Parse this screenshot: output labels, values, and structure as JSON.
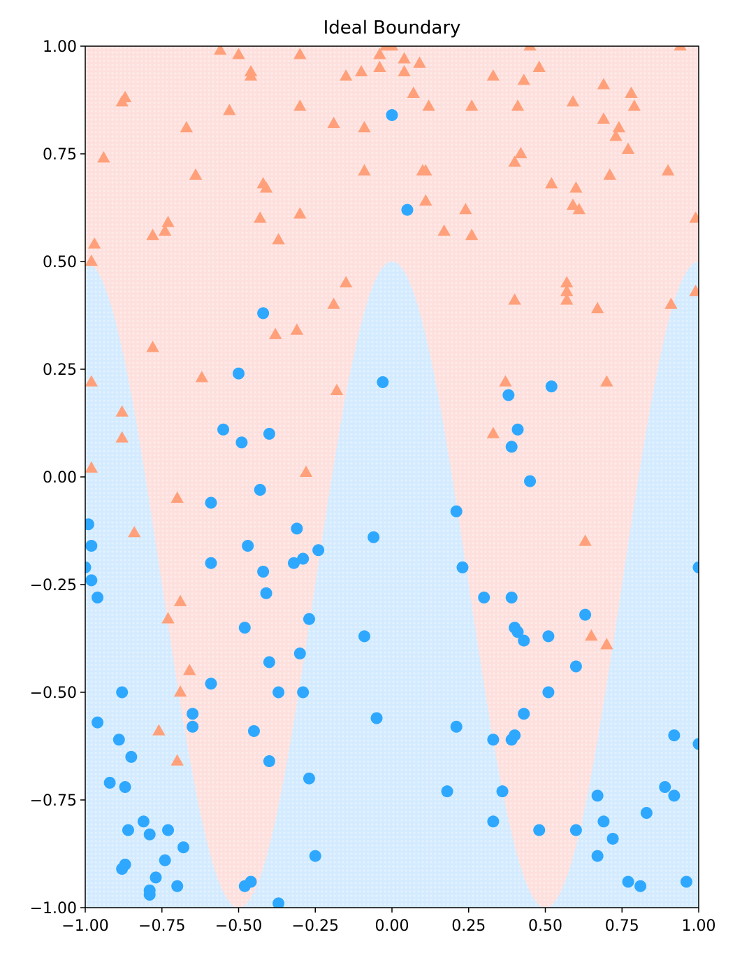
{
  "chart_data": {
    "type": "scatter",
    "title": "Ideal Boundary",
    "xlabel": "",
    "ylabel": "",
    "xlim": [
      -1.0,
      1.0
    ],
    "ylim": [
      -1.0,
      1.0
    ],
    "xticks": [
      "−1.00",
      "−0.75",
      "−0.50",
      "−0.25",
      "0.00",
      "0.25",
      "0.50",
      "0.75",
      "1.00"
    ],
    "yticks": [
      "−1.00",
      "−0.75",
      "−0.50",
      "−0.25",
      "0.00",
      "0.25",
      "0.50",
      "0.75",
      "1.00"
    ],
    "grid": false,
    "legend": "none",
    "background_regions": {
      "boundary": "y = 0.75*cos(2*pi*x) - 0.25",
      "above_color": "#fde0dd",
      "below_color": "#d4ebff"
    },
    "series": [
      {
        "marker": "triangle",
        "color": "#ffa07a",
        "points": [
          [
            -0.56,
            0.99
          ],
          [
            -0.5,
            0.98
          ],
          [
            -0.46,
            0.94
          ],
          [
            -0.46,
            0.93
          ],
          [
            -0.3,
            0.98
          ],
          [
            -0.15,
            0.93
          ],
          [
            -0.1,
            0.94
          ],
          [
            -0.04,
            0.98
          ],
          [
            -0.04,
            0.95
          ],
          [
            -0.02,
            1.0
          ],
          [
            0.0,
            1.0
          ],
          [
            0.04,
            0.97
          ],
          [
            0.04,
            0.94
          ],
          [
            0.09,
            0.96
          ],
          [
            0.07,
            0.89
          ],
          [
            0.12,
            0.86
          ],
          [
            0.26,
            0.86
          ],
          [
            0.33,
            0.93
          ],
          [
            0.43,
            0.92
          ],
          [
            0.45,
            1.0
          ],
          [
            0.48,
            0.95
          ],
          [
            0.41,
            0.86
          ],
          [
            0.59,
            0.87
          ],
          [
            0.69,
            0.91
          ],
          [
            0.78,
            0.89
          ],
          [
            0.79,
            0.86
          ],
          [
            0.94,
            1.0
          ],
          [
            -0.88,
            0.87
          ],
          [
            -0.87,
            0.88
          ],
          [
            -0.53,
            0.85
          ],
          [
            -0.3,
            0.86
          ],
          [
            -0.19,
            0.82
          ],
          [
            -0.09,
            0.81
          ],
          [
            0.69,
            0.83
          ],
          [
            0.74,
            0.81
          ],
          [
            0.73,
            0.79
          ],
          [
            -0.67,
            0.81
          ],
          [
            -0.94,
            0.74
          ],
          [
            -0.64,
            0.7
          ],
          [
            -0.09,
            0.71
          ],
          [
            0.1,
            0.71
          ],
          [
            0.11,
            0.71
          ],
          [
            0.42,
            0.75
          ],
          [
            0.4,
            0.73
          ],
          [
            0.77,
            0.76
          ],
          [
            0.9,
            0.71
          ],
          [
            0.71,
            0.7
          ],
          [
            -0.42,
            0.68
          ],
          [
            -0.41,
            0.67
          ],
          [
            0.52,
            0.68
          ],
          [
            0.6,
            0.67
          ],
          [
            -0.43,
            0.6
          ],
          [
            -0.3,
            0.61
          ],
          [
            0.11,
            0.64
          ],
          [
            0.24,
            0.62
          ],
          [
            0.59,
            0.63
          ],
          [
            0.61,
            0.62
          ],
          [
            0.99,
            0.6
          ],
          [
            -0.73,
            0.59
          ],
          [
            -0.74,
            0.57
          ],
          [
            -0.78,
            0.56
          ],
          [
            -0.97,
            0.54
          ],
          [
            -0.98,
            0.5
          ],
          [
            -0.37,
            0.55
          ],
          [
            0.17,
            0.57
          ],
          [
            0.26,
            0.56
          ],
          [
            -0.15,
            0.45
          ],
          [
            -0.19,
            0.4
          ],
          [
            0.57,
            0.45
          ],
          [
            0.57,
            0.43
          ],
          [
            0.57,
            0.41
          ],
          [
            0.4,
            0.41
          ],
          [
            0.67,
            0.39
          ],
          [
            0.91,
            0.4
          ],
          [
            0.99,
            0.43
          ],
          [
            -0.31,
            0.34
          ],
          [
            -0.38,
            0.33
          ],
          [
            -0.78,
            0.3
          ],
          [
            -0.62,
            0.23
          ],
          [
            -0.98,
            0.22
          ],
          [
            -0.18,
            0.2
          ],
          [
            0.37,
            0.22
          ],
          [
            0.7,
            0.22
          ],
          [
            -0.88,
            0.15
          ],
          [
            -0.88,
            0.09
          ],
          [
            0.33,
            0.1
          ],
          [
            -0.98,
            0.02
          ],
          [
            -0.28,
            0.01
          ],
          [
            -0.7,
            -0.05
          ],
          [
            -0.84,
            -0.13
          ],
          [
            0.63,
            -0.15
          ],
          [
            -0.69,
            -0.29
          ],
          [
            -0.73,
            -0.33
          ],
          [
            0.65,
            -0.37
          ],
          [
            0.7,
            -0.39
          ],
          [
            -0.66,
            -0.45
          ],
          [
            -0.69,
            -0.5
          ],
          [
            -0.76,
            -0.59
          ],
          [
            -0.7,
            -0.66
          ]
        ]
      },
      {
        "marker": "circle",
        "color": "#2ea8ff",
        "points": [
          [
            0.0,
            0.84
          ],
          [
            0.05,
            0.62
          ],
          [
            -0.42,
            0.38
          ],
          [
            -0.5,
            0.24
          ],
          [
            -0.03,
            0.22
          ],
          [
            0.52,
            0.21
          ],
          [
            0.38,
            0.19
          ],
          [
            -0.55,
            0.11
          ],
          [
            -0.4,
            0.1
          ],
          [
            -0.49,
            0.08
          ],
          [
            0.41,
            0.11
          ],
          [
            0.39,
            0.07
          ],
          [
            -0.43,
            -0.03
          ],
          [
            0.45,
            -0.01
          ],
          [
            -0.59,
            -0.06
          ],
          [
            0.21,
            -0.08
          ],
          [
            -0.99,
            -0.11
          ],
          [
            -0.31,
            -0.12
          ],
          [
            -0.06,
            -0.14
          ],
          [
            -0.98,
            -0.16
          ],
          [
            -0.47,
            -0.16
          ],
          [
            -0.24,
            -0.17
          ],
          [
            -0.59,
            -0.2
          ],
          [
            -0.32,
            -0.2
          ],
          [
            -0.29,
            -0.19
          ],
          [
            -1.0,
            -0.21
          ],
          [
            1.0,
            -0.21
          ],
          [
            0.23,
            -0.21
          ],
          [
            -0.42,
            -0.22
          ],
          [
            -0.98,
            -0.24
          ],
          [
            -0.96,
            -0.28
          ],
          [
            -0.41,
            -0.27
          ],
          [
            0.3,
            -0.28
          ],
          [
            0.39,
            -0.28
          ],
          [
            -0.27,
            -0.33
          ],
          [
            0.63,
            -0.32
          ],
          [
            -0.48,
            -0.35
          ],
          [
            0.4,
            -0.35
          ],
          [
            0.41,
            -0.36
          ],
          [
            -0.09,
            -0.37
          ],
          [
            0.51,
            -0.37
          ],
          [
            0.43,
            -0.38
          ],
          [
            -0.3,
            -0.41
          ],
          [
            -0.4,
            -0.43
          ],
          [
            0.6,
            -0.44
          ],
          [
            -0.59,
            -0.48
          ],
          [
            -0.88,
            -0.5
          ],
          [
            -0.37,
            -0.5
          ],
          [
            -0.29,
            -0.5
          ],
          [
            0.51,
            -0.5
          ],
          [
            -0.65,
            -0.55
          ],
          [
            0.43,
            -0.55
          ],
          [
            -0.05,
            -0.56
          ],
          [
            -0.96,
            -0.57
          ],
          [
            -0.65,
            -0.58
          ],
          [
            0.21,
            -0.58
          ],
          [
            -0.45,
            -0.59
          ],
          [
            0.4,
            -0.6
          ],
          [
            -0.89,
            -0.61
          ],
          [
            0.33,
            -0.61
          ],
          [
            0.39,
            -0.61
          ],
          [
            0.92,
            -0.6
          ],
          [
            1.0,
            -0.62
          ],
          [
            -0.85,
            -0.65
          ],
          [
            -0.4,
            -0.66
          ],
          [
            -0.27,
            -0.7
          ],
          [
            -0.92,
            -0.71
          ],
          [
            -0.87,
            -0.72
          ],
          [
            0.18,
            -0.73
          ],
          [
            0.36,
            -0.73
          ],
          [
            0.89,
            -0.72
          ],
          [
            0.67,
            -0.74
          ],
          [
            0.92,
            -0.74
          ],
          [
            0.83,
            -0.78
          ],
          [
            -0.81,
            -0.8
          ],
          [
            0.33,
            -0.8
          ],
          [
            0.69,
            -0.8
          ],
          [
            -0.86,
            -0.82
          ],
          [
            -0.79,
            -0.83
          ],
          [
            -0.73,
            -0.82
          ],
          [
            0.48,
            -0.82
          ],
          [
            0.6,
            -0.82
          ],
          [
            0.72,
            -0.84
          ],
          [
            -0.68,
            -0.86
          ],
          [
            -0.25,
            -0.88
          ],
          [
            0.67,
            -0.88
          ],
          [
            -0.74,
            -0.89
          ],
          [
            -0.87,
            -0.9
          ],
          [
            -0.88,
            -0.91
          ],
          [
            -0.77,
            -0.93
          ],
          [
            -0.7,
            -0.95
          ],
          [
            -0.48,
            -0.95
          ],
          [
            -0.46,
            -0.94
          ],
          [
            -0.79,
            -0.96
          ],
          [
            -0.79,
            -0.97
          ],
          [
            -0.37,
            -0.99
          ],
          [
            0.77,
            -0.94
          ],
          [
            0.81,
            -0.95
          ],
          [
            0.96,
            -0.94
          ]
        ]
      }
    ]
  }
}
